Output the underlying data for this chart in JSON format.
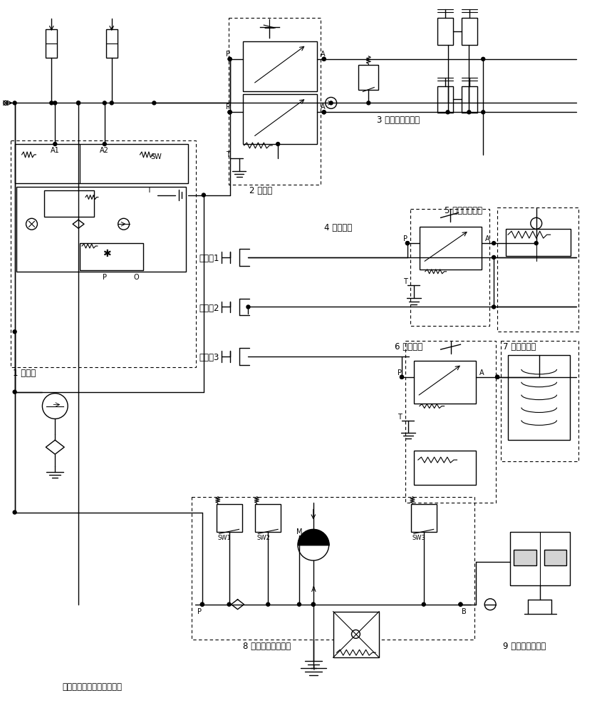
{
  "bg_color": "#ffffff",
  "labels": {
    "label1": "1 充液阀",
    "label2": "2 制动阀",
    "label3": "3 钳盘行车制动器",
    "label4": "4 手制动阀",
    "label5": "5 驻车制动油缸",
    "label6": "6 手制动阀",
    "label7": "7 多片制动器",
    "label8": "8 驻车制动阀块总成",
    "label9": "9 钳盘驻车制动器",
    "opt1": "可选项1",
    "opt2": "可选项2",
    "opt3": "可选项3",
    "bottom_label": "去其他二级系统或者回油箱"
  }
}
